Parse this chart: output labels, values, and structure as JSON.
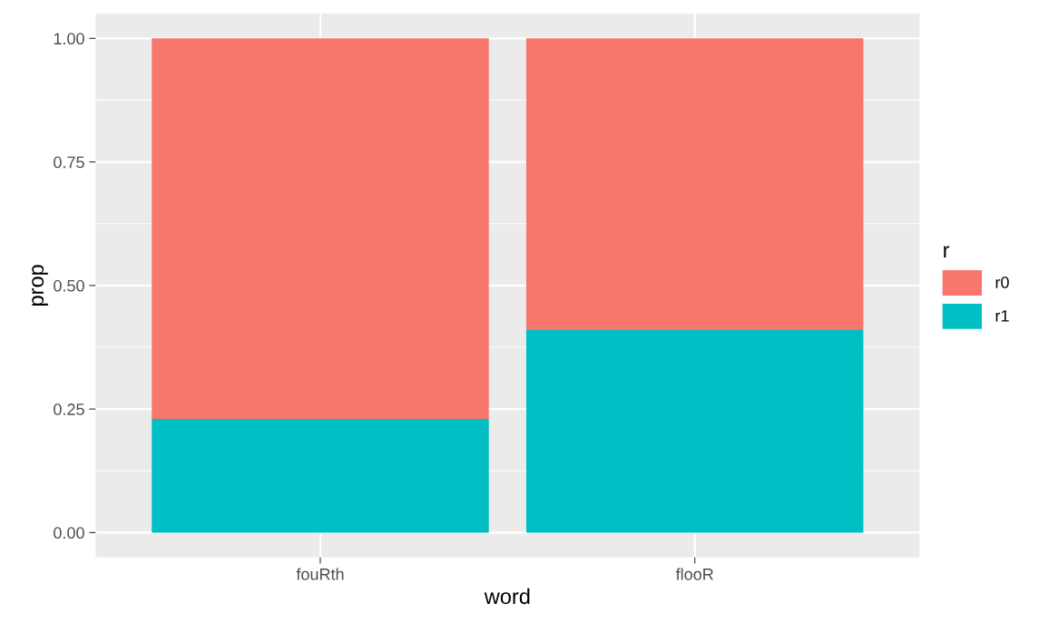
{
  "chart_data": {
    "type": "bar",
    "xlabel": "word",
    "ylabel": "prop",
    "legend_title": "r",
    "categories": [
      "fouRth",
      "flooR"
    ],
    "stacked": true,
    "series": [
      {
        "name": "r1",
        "color": "#00bfc4",
        "values": [
          0.23,
          0.41
        ]
      },
      {
        "name": "r0",
        "color": "#f8766d",
        "values": [
          0.77,
          0.59
        ]
      }
    ],
    "ylim": [
      -0.05,
      1.05
    ],
    "yticks": [
      {
        "value": 0,
        "label": "0.00"
      },
      {
        "value": 0.25,
        "label": "0.25"
      },
      {
        "value": 0.5,
        "label": "0.50"
      },
      {
        "value": 0.75,
        "label": "0.75"
      },
      {
        "value": 1,
        "label": "1.00"
      }
    ],
    "grid": true,
    "legend": "right"
  }
}
